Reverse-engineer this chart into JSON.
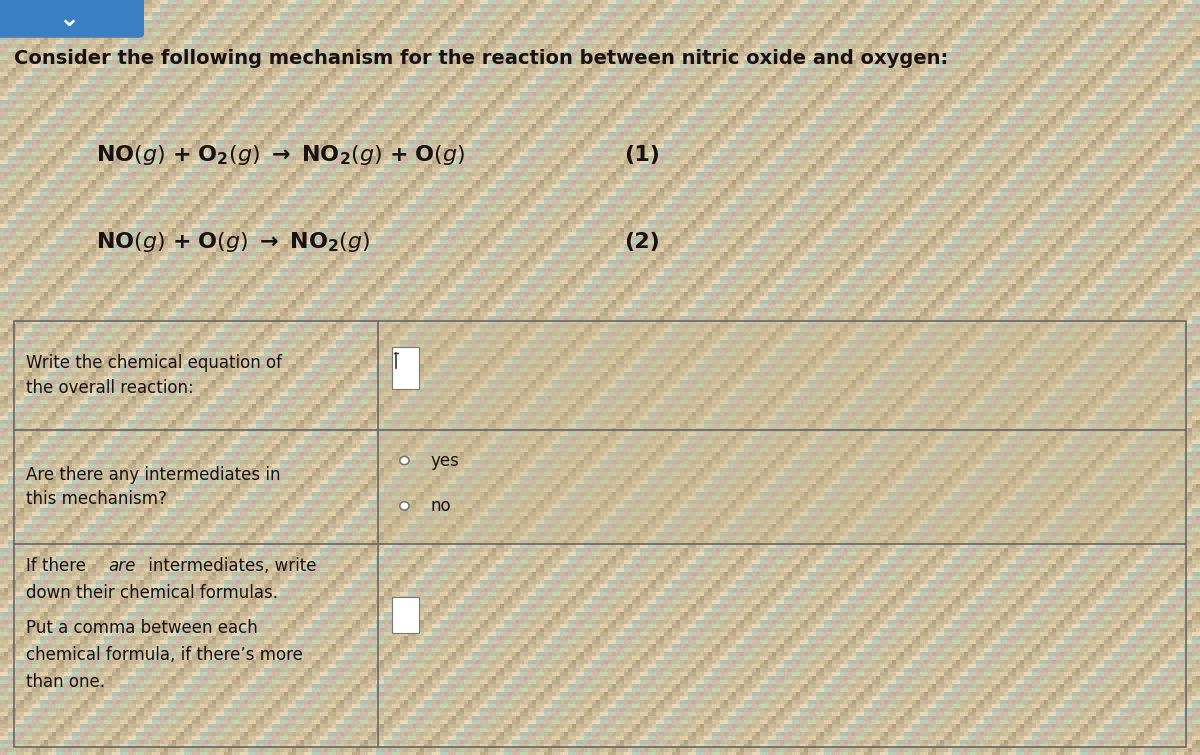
{
  "bg_color": "#c8b89a",
  "title_text": "Consider the following mechanism for the reaction between nitric oxide and oxygen:",
  "eq1_label": "(1)",
  "eq2_label": "(2)",
  "table_border_color": "#666666",
  "row1_left_line1": "Write the chemical equation of",
  "row1_left_line2": "the overall reaction:",
  "row2_left_line1": "Are there any intermediates in",
  "row2_left_line2": "this mechanism?",
  "row3_left_line1a": "If there ",
  "row3_left_line1b": "are",
  "row3_left_line1c": " intermediates, write",
  "row3_left_line2": "down their chemical formulas.",
  "row3_left_line3": "Put a comma between each",
  "row3_left_line4": "chemical formula, if there’s more",
  "row3_left_line5": "than one.",
  "radio_yes": "yes",
  "radio_no": "no",
  "text_color": "#1a1212",
  "eq_fontsize": 16,
  "title_fontsize": 14,
  "table_fontsize": 12,
  "fig_width": 12.0,
  "fig_height": 7.55,
  "dpi": 100
}
